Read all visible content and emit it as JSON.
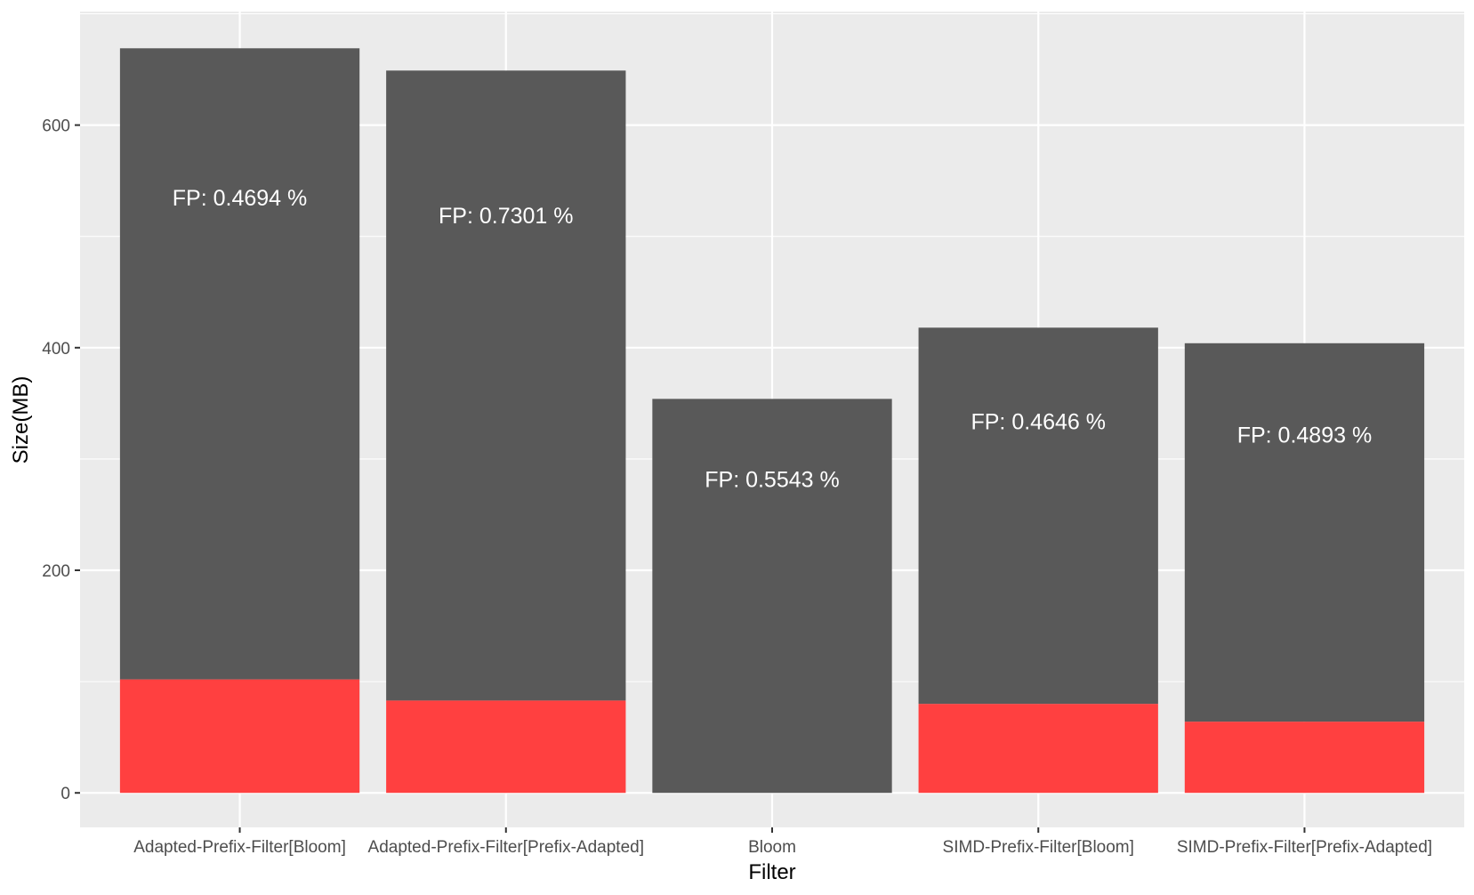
{
  "chart_data": {
    "type": "bar",
    "stacked": true,
    "xlabel": "Filter",
    "ylabel": "Size(MB)",
    "categories": [
      "Adapted-Prefix-Filter[Bloom]",
      "Adapted-Prefix-Filter[Prefix-Adapted]",
      "Bloom",
      "SIMD-Prefix-Filter[Bloom]",
      "SIMD-Prefix-Filter[Prefix-Adapted]"
    ],
    "series": [
      {
        "color": "#ff4040",
        "values": [
          102,
          83,
          0,
          80,
          64
        ]
      },
      {
        "color": "#595959",
        "values": [
          567,
          566,
          354,
          338,
          340
        ]
      }
    ],
    "totals": [
      669,
      649,
      354,
      418,
      404
    ],
    "annotations": [
      {
        "text": "FP: 0.4694 %",
        "y": 535
      },
      {
        "text": "FP: 0.7301 %",
        "y": 519
      },
      {
        "text": "FP: 0.5543 %",
        "y": 282
      },
      {
        "text": "FP: 0.4646 %",
        "y": 334
      },
      {
        "text": "FP: 0.4893 %",
        "y": 322
      }
    ],
    "yticks": [
      0,
      200,
      400,
      600
    ],
    "ylim": [
      -31,
      702
    ],
    "grid": true,
    "panel_background": "#ebebeb",
    "grid_color": "#ffffff"
  }
}
